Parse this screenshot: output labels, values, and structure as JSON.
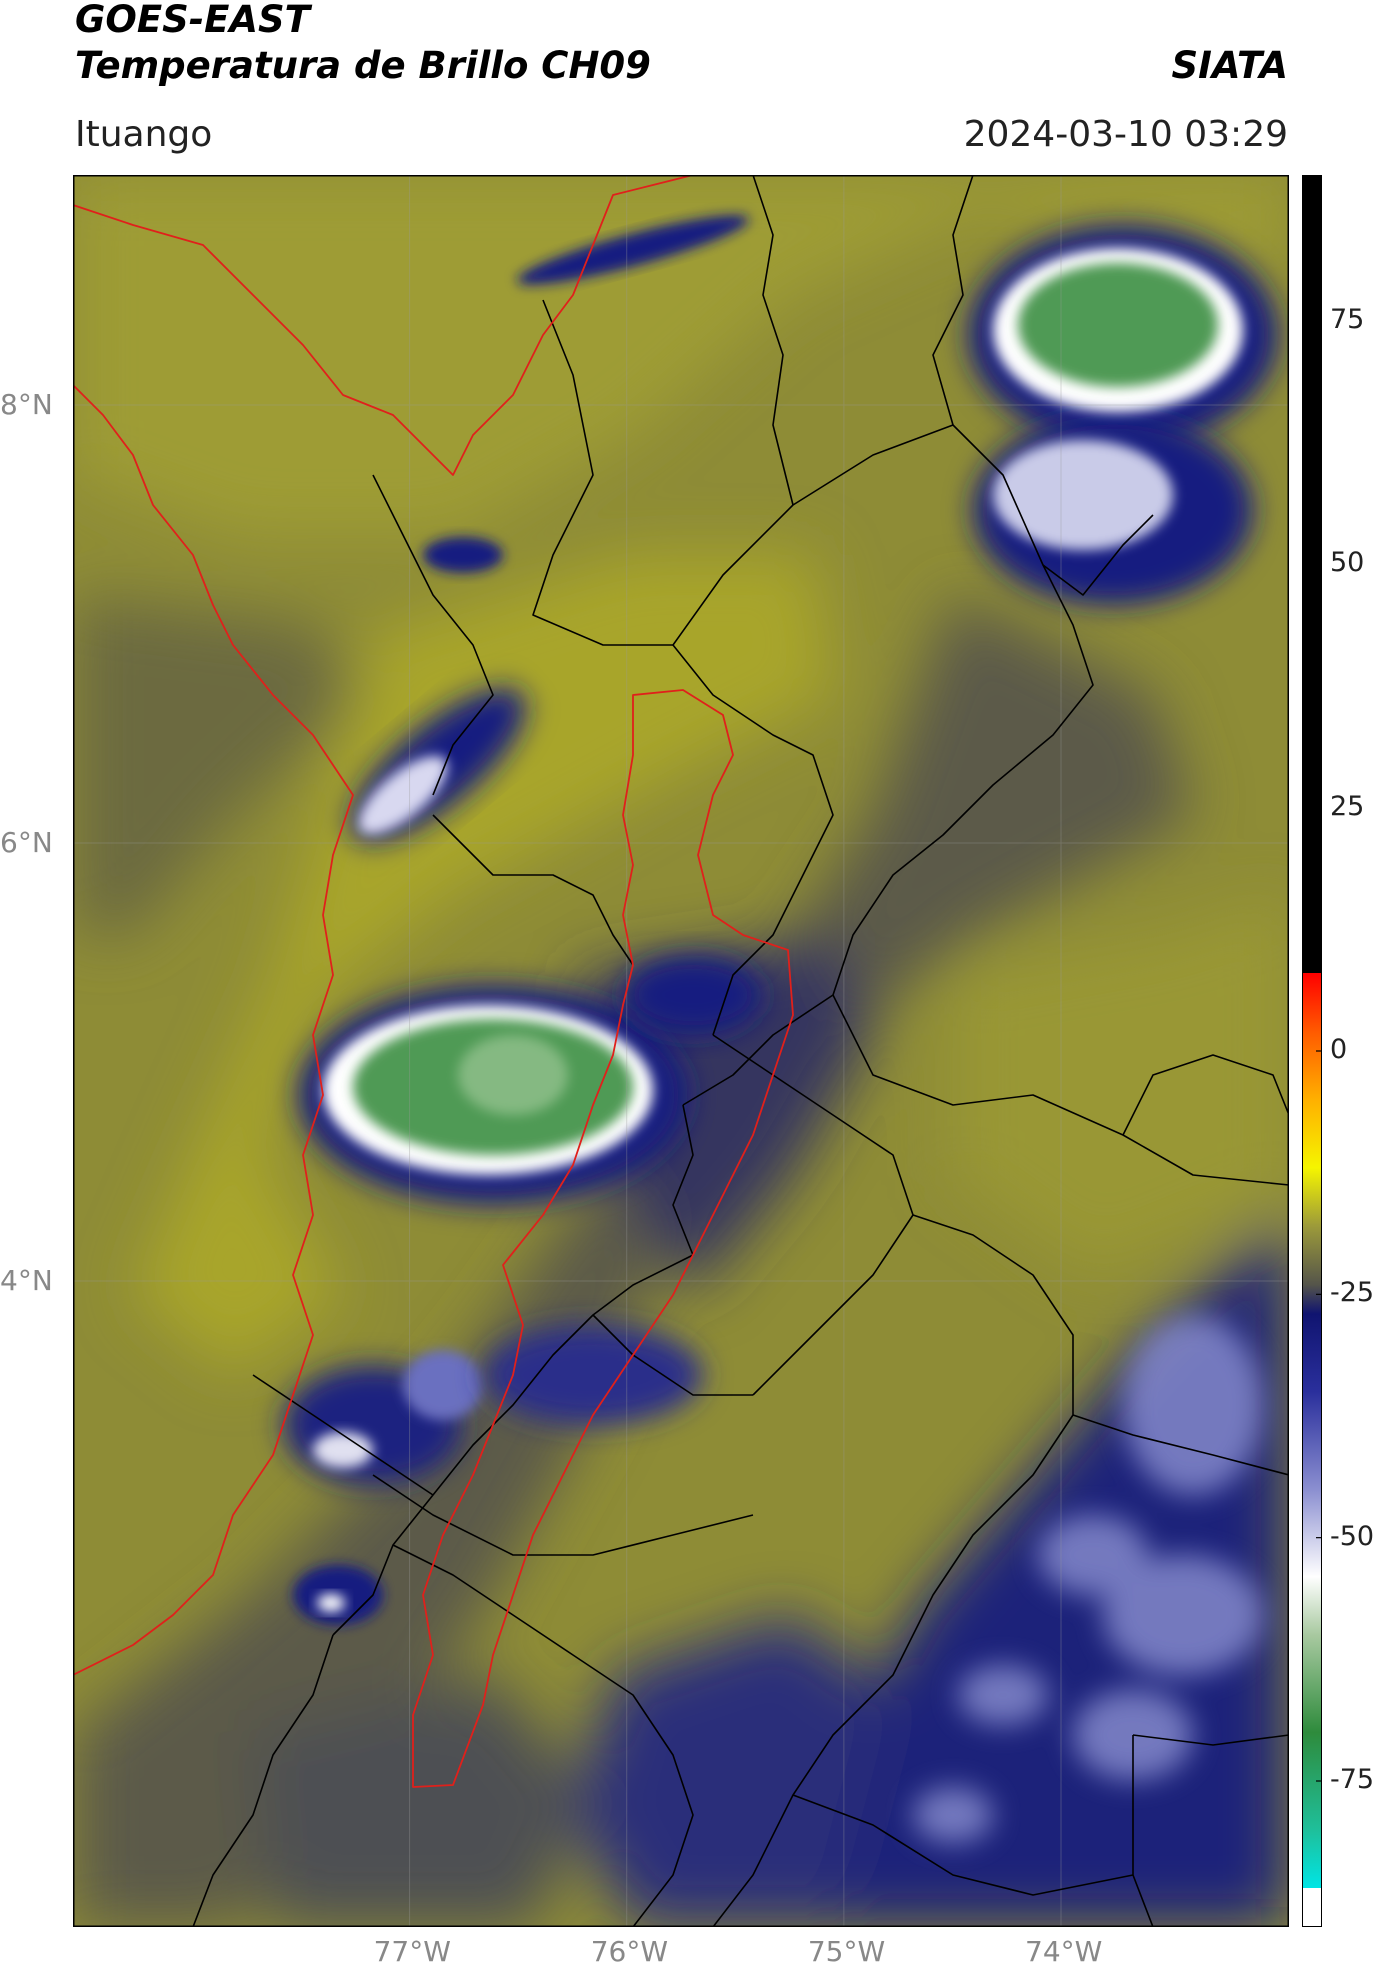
{
  "header": {
    "line1": "GOES-EAST",
    "line2": "Temperatura de Brillo CH09",
    "brand": "SIATA",
    "location": "Ituango",
    "datetime": "2024-03-10 03:29"
  },
  "map": {
    "lon_range": [
      -78.55,
      -72.95
    ],
    "lat_range": [
      1.05,
      9.05
    ],
    "lon_ticks": [
      {
        "v": -77,
        "label": "77°W"
      },
      {
        "v": -76,
        "label": "76°W"
      },
      {
        "v": -75,
        "label": "75°W"
      },
      {
        "v": -74,
        "label": "74°W"
      }
    ],
    "lat_ticks": [
      {
        "v": 8,
        "label": "8°N"
      },
      {
        "v": 6,
        "label": "6°N"
      },
      {
        "v": 4,
        "label": "4°N"
      }
    ],
    "gridlines": true,
    "colors": {
      "warm_field": "#a6a42c",
      "mid_field": "#6e6c3a",
      "cold_field": "#1f2a7d",
      "storm_core": "#3f8f4a",
      "department_border": "#000000",
      "region_border": "#e0201b",
      "coast": "#e0201b"
    }
  },
  "colorbar": {
    "range": [
      -90,
      90
    ],
    "ticks": [
      {
        "v": 75,
        "label": "75"
      },
      {
        "v": 50,
        "label": "50"
      },
      {
        "v": 25,
        "label": "25"
      },
      {
        "v": 0,
        "label": "0"
      },
      {
        "v": -25,
        "label": "-25"
      },
      {
        "v": -50,
        "label": "-50"
      },
      {
        "v": -75,
        "label": "-75"
      }
    ],
    "stops": [
      {
        "v": -90,
        "color": "#ffffff"
      },
      {
        "v": -86,
        "color": "#ffffff"
      },
      {
        "v": -86,
        "color": "#00e5e5"
      },
      {
        "v": -80,
        "color": "#1fbf9a"
      },
      {
        "v": -70,
        "color": "#2e8b3c"
      },
      {
        "v": -60,
        "color": "#a8c9a0"
      },
      {
        "v": -54,
        "color": "#ffffff"
      },
      {
        "v": -45,
        "color": "#8a8ed0"
      },
      {
        "v": -35,
        "color": "#2a2f9c"
      },
      {
        "v": -27,
        "color": "#101470"
      },
      {
        "v": -24,
        "color": "#55554a"
      },
      {
        "v": -18,
        "color": "#9c9a3a"
      },
      {
        "v": -12,
        "color": "#f5f500"
      },
      {
        "v": -5,
        "color": "#ffb000"
      },
      {
        "v": 2,
        "color": "#ff5a00"
      },
      {
        "v": 8,
        "color": "#ff0000"
      },
      {
        "v": 8,
        "color": "#000000"
      },
      {
        "v": 90,
        "color": "#000000"
      }
    ]
  }
}
